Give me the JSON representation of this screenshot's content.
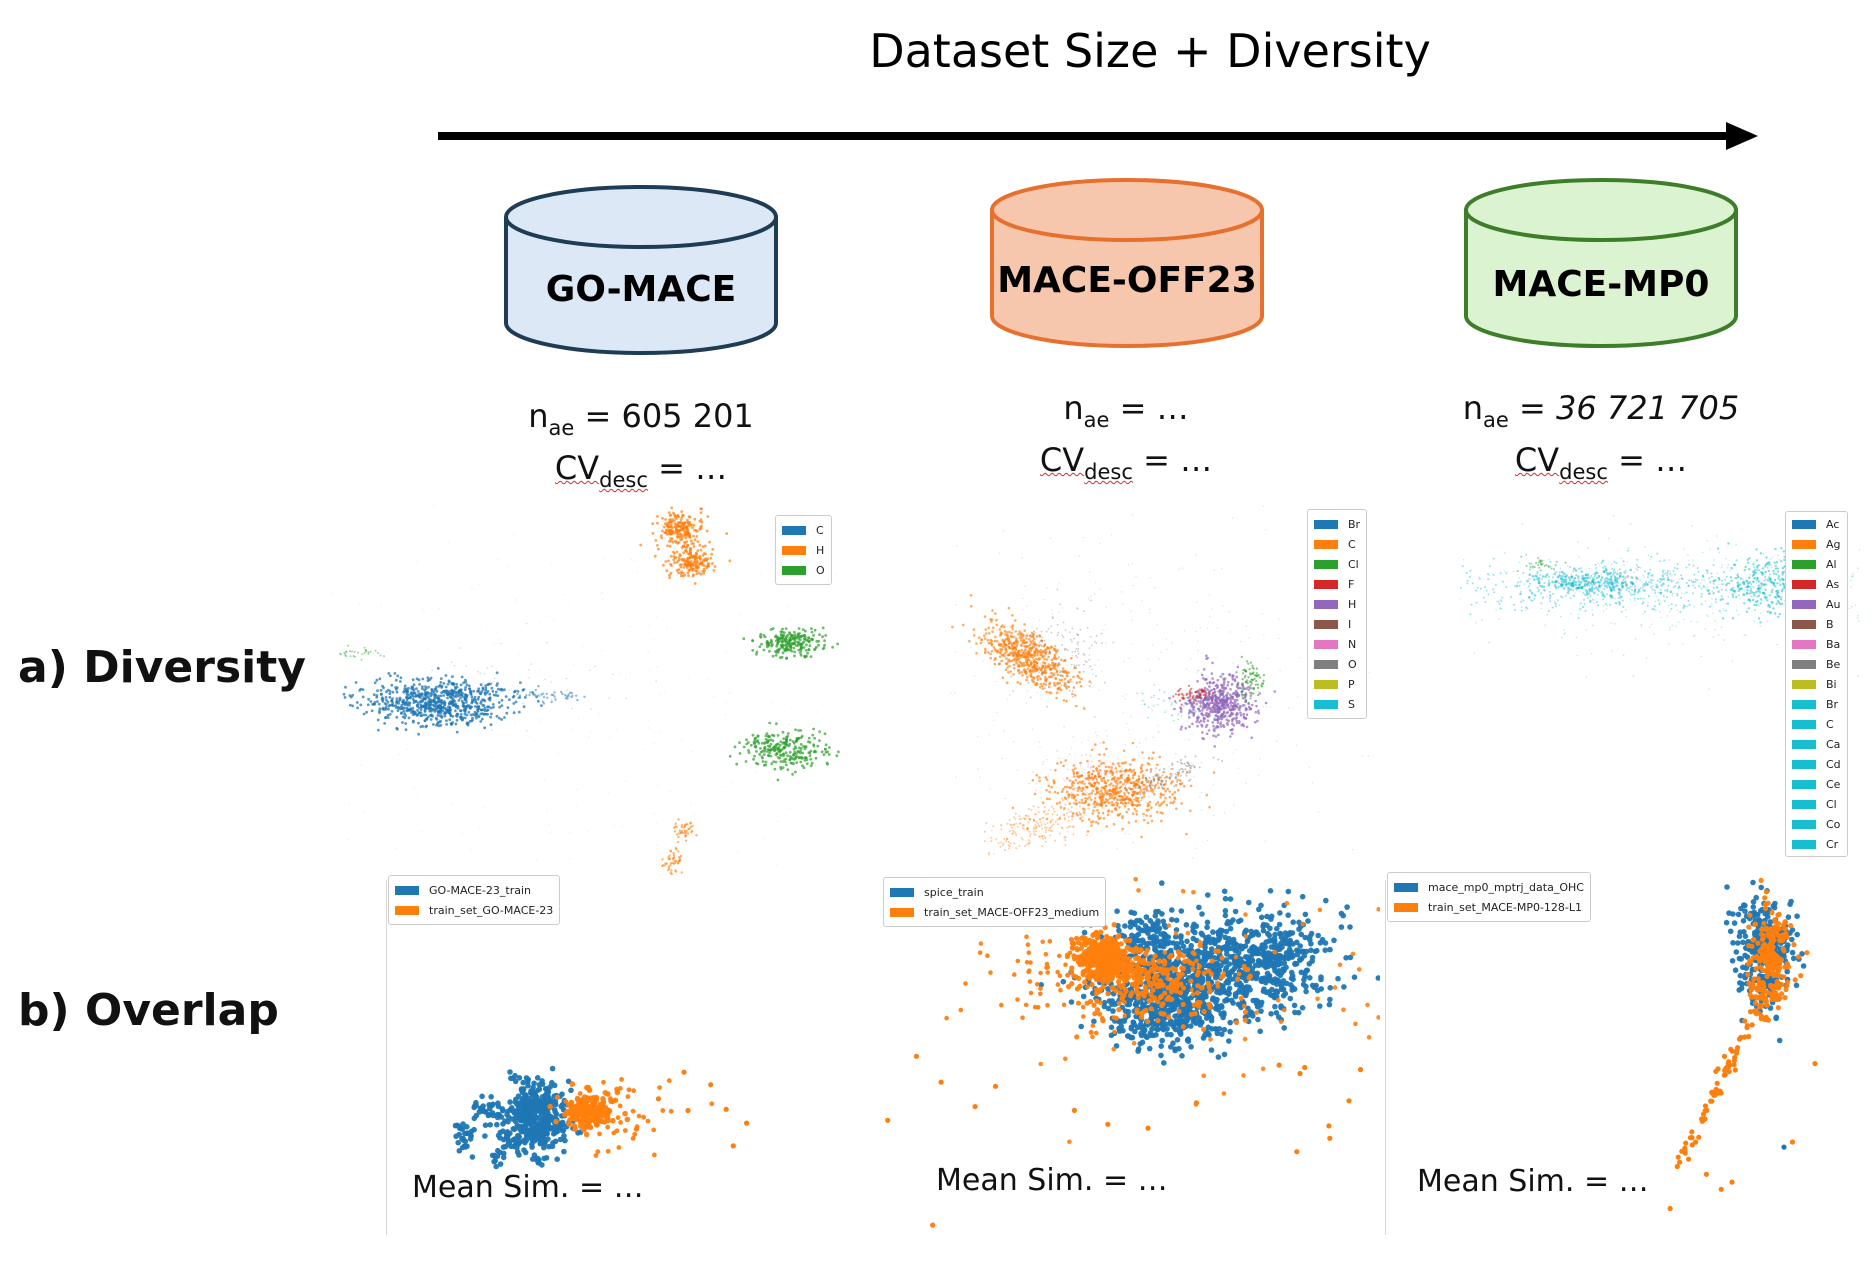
{
  "header": {
    "title": "Dataset Size + Diversity"
  },
  "datasets": [
    {
      "name": "GO-MACE",
      "fill": "#dde8f6",
      "stroke": "#1f3c55",
      "n_ae_label": "n",
      "n_ae_sub": "ae",
      "n_ae_value": "= 605 201",
      "cv_label": "CV",
      "cv_sub": "desc",
      "cv_value": "= …"
    },
    {
      "name": "MACE-OFF23",
      "fill": "#f7c7ad",
      "stroke": "#e6702e",
      "n_ae_label": "n",
      "n_ae_sub": "ae",
      "n_ae_value": "= …",
      "cv_label": "CV",
      "cv_sub": "desc",
      "cv_value": "= …"
    },
    {
      "name": "MACE-MP0",
      "fill": "#dcf3d2",
      "stroke": "#3e7e2b",
      "n_ae_label": "n",
      "n_ae_sub": "ae",
      "n_ae_value": "= 36 721 705",
      "cv_label": "CV",
      "cv_sub": "desc",
      "cv_value": "= …"
    }
  ],
  "rows": {
    "diversity": "a) Diversity",
    "overlap": "b) Overlap"
  },
  "diversity_legends": [
    {
      "entries": [
        {
          "label": "C",
          "color": "#1f77b4"
        },
        {
          "label": "H",
          "color": "#ff7f0e"
        },
        {
          "label": "O",
          "color": "#2ca02c"
        }
      ]
    },
    {
      "entries": [
        {
          "label": "Br",
          "color": "#1f77b4"
        },
        {
          "label": "C",
          "color": "#ff7f0e"
        },
        {
          "label": "Cl",
          "color": "#2ca02c"
        },
        {
          "label": "F",
          "color": "#d62728"
        },
        {
          "label": "H",
          "color": "#9467bd"
        },
        {
          "label": "I",
          "color": "#8c564b"
        },
        {
          "label": "N",
          "color": "#e377c2"
        },
        {
          "label": "O",
          "color": "#7f7f7f"
        },
        {
          "label": "P",
          "color": "#bcbd22"
        },
        {
          "label": "S",
          "color": "#17becf"
        }
      ]
    },
    {
      "entries": [
        {
          "label": "Ac",
          "color": "#1f77b4"
        },
        {
          "label": "Ag",
          "color": "#ff7f0e"
        },
        {
          "label": "Al",
          "color": "#2ca02c"
        },
        {
          "label": "As",
          "color": "#d62728"
        },
        {
          "label": "Au",
          "color": "#9467bd"
        },
        {
          "label": "B",
          "color": "#8c564b"
        },
        {
          "label": "Ba",
          "color": "#e377c2"
        },
        {
          "label": "Be",
          "color": "#7f7f7f"
        },
        {
          "label": "Bi",
          "color": "#bcbd22"
        },
        {
          "label": "Br",
          "color": "#17becf"
        },
        {
          "label": "C",
          "color": "#17becf"
        },
        {
          "label": "Ca",
          "color": "#17becf"
        },
        {
          "label": "Cd",
          "color": "#17becf"
        },
        {
          "label": "Ce",
          "color": "#17becf"
        },
        {
          "label": "Cl",
          "color": "#17becf"
        },
        {
          "label": "Co",
          "color": "#17becf"
        },
        {
          "label": "Cr",
          "color": "#17becf"
        }
      ]
    }
  ],
  "overlap_legends": [
    {
      "entries": [
        {
          "label": "GO-MACE-23_train",
          "color": "#1f77b4"
        },
        {
          "label": "train_set_GO-MACE-23",
          "color": "#ff7f0e"
        }
      ]
    },
    {
      "entries": [
        {
          "label": "spice_train",
          "color": "#1f77b4"
        },
        {
          "label": "train_set_MACE-OFF23_medium",
          "color": "#ff7f0e"
        }
      ]
    },
    {
      "entries": [
        {
          "label": "mace_mp0_mptrj_data_OHC",
          "color": "#1f77b4"
        },
        {
          "label": "train_set_MACE-MP0-128-L1",
          "color": "#ff7f0e"
        }
      ]
    }
  ],
  "mean_sim": [
    "Mean Sim. = …",
    "Mean Sim. = …",
    "Mean Sim. = …"
  ]
}
